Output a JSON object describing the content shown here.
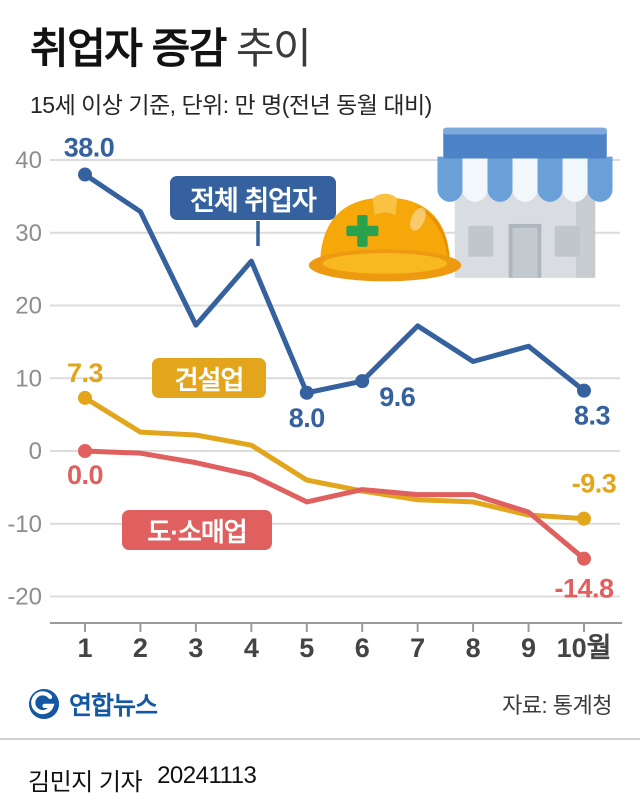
{
  "header": {
    "title_strong": "취업자 증감",
    "title_light": "추이",
    "subtitle": "15세 이상 기준, 단위: 만 명(전년 동월 대비)"
  },
  "chart_data": {
    "type": "line",
    "title": "취업자 증감 추이",
    "unit": "만 명(전년 동월 대비)",
    "grid": true,
    "x_tick_labels": [
      "1",
      "2",
      "3",
      "4",
      "5",
      "6",
      "7",
      "8",
      "9",
      "10월"
    ],
    "y_ticks": [
      40,
      30,
      20,
      10,
      0,
      -10,
      -20
    ],
    "ylim": [
      -24,
      44
    ],
    "axis_color": "#9a9a9a",
    "grid_color": "#dcdcdc",
    "series": [
      {
        "name": "전체 취업자",
        "color": "#35619e",
        "values": [
          38.0,
          32.9,
          17.3,
          26.1,
          8.0,
          9.6,
          17.2,
          12.3,
          14.4,
          8.3
        ],
        "markers": [
          0,
          4,
          5,
          9
        ],
        "labels": [
          {
            "i": 0,
            "text": "38.0",
            "dx": 4,
            "dy": -18,
            "anchor": "middle"
          },
          {
            "i": 4,
            "text": "8.0",
            "dx": 0,
            "dy": 34,
            "anchor": "middle"
          },
          {
            "i": 5,
            "text": "9.6",
            "dx": 17,
            "dy": 25,
            "anchor": "start"
          },
          {
            "i": 9,
            "text": "8.3",
            "dx": 8,
            "dy": 34,
            "anchor": "middle"
          }
        ]
      },
      {
        "name": "건설업",
        "color": "#e2a51b",
        "values": [
          7.3,
          2.6,
          2.2,
          0.8,
          -4.0,
          -5.5,
          -6.7,
          -7.0,
          -8.8,
          -9.3
        ],
        "markers": [
          0,
          9
        ],
        "labels": [
          {
            "i": 0,
            "text": "7.3",
            "dx": 0,
            "dy": -16,
            "anchor": "middle"
          },
          {
            "i": 9,
            "text": "-9.3",
            "dx": 10,
            "dy": -26,
            "anchor": "middle"
          }
        ]
      },
      {
        "name": "도·소매업",
        "color": "#e05f5f",
        "values": [
          0.0,
          -0.3,
          -1.6,
          -3.3,
          -7.0,
          -5.3,
          -6.0,
          -6.0,
          -8.4,
          -14.8
        ],
        "markers": [
          0,
          9
        ],
        "labels": [
          {
            "i": 0,
            "text": "0.0",
            "dx": 0,
            "dy": 33,
            "anchor": "middle"
          },
          {
            "i": 9,
            "text": "-14.8",
            "dx": 0,
            "dy": 39,
            "anchor": "middle"
          }
        ]
      }
    ]
  },
  "footer": {
    "brand": "연합뉴스",
    "source": "자료: 통계청"
  },
  "byline": {
    "reporter": "김민지 기자",
    "date": "20241113"
  }
}
